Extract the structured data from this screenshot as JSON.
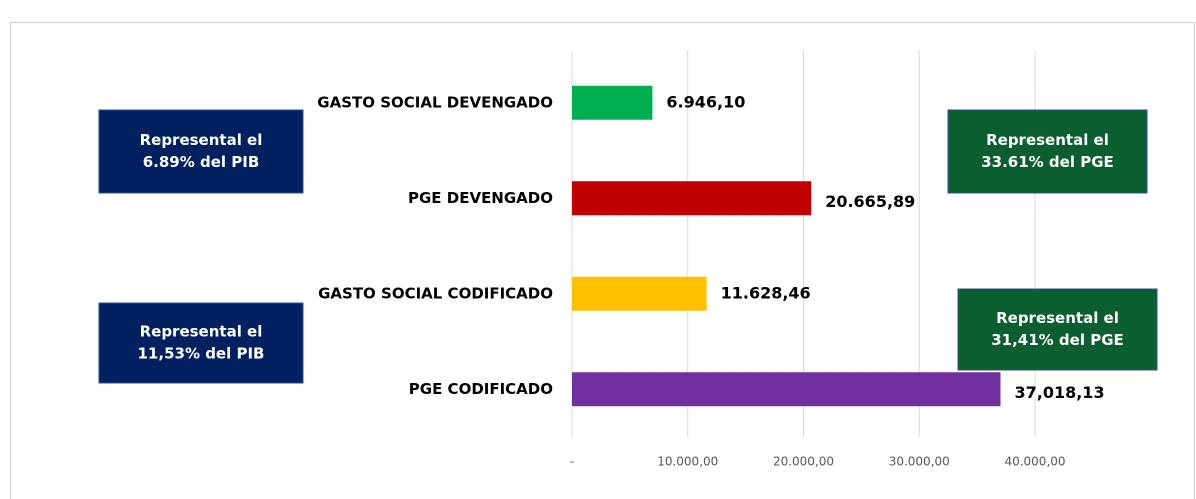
{
  "chart_data": {
    "type": "barh",
    "categories": [
      "GASTO SOCIAL DEVENGADO",
      "PGE DEVENGADO",
      "GASTO SOCIAL CODIFICADO",
      "PGE CODIFICADO"
    ],
    "values": [
      6946.1,
      20665.89,
      11628.46,
      37018.13
    ],
    "value_labels": [
      "6.946,10",
      "20.665,89",
      "11.628,46",
      "37,018,13"
    ],
    "colors": [
      "#00b050",
      "#c00000",
      "#ffc000",
      "#7030a0"
    ],
    "xlim": [
      0,
      40000
    ],
    "xticks": [
      {
        "value": 0,
        "label": "-"
      },
      {
        "value": 10000,
        "label": "10.000,00"
      },
      {
        "value": 20000,
        "label": "20.000,00"
      },
      {
        "value": 30000,
        "label": "30.000,00"
      },
      {
        "value": 40000,
        "label": "40.000,00"
      }
    ],
    "grid": true,
    "annotations": [
      {
        "lines": [
          "Represental el",
          "6.89% del PIB"
        ],
        "color": "#002060"
      },
      {
        "lines": [
          "Represental el",
          "11,53% del PIB"
        ],
        "color": "#002060"
      },
      {
        "lines": [
          "Represental el",
          "33.61% del PGE"
        ],
        "color": "#0b5e2f"
      },
      {
        "lines": [
          "Represental el",
          "31,41% del PGE"
        ],
        "color": "#0b5e2f"
      }
    ]
  }
}
